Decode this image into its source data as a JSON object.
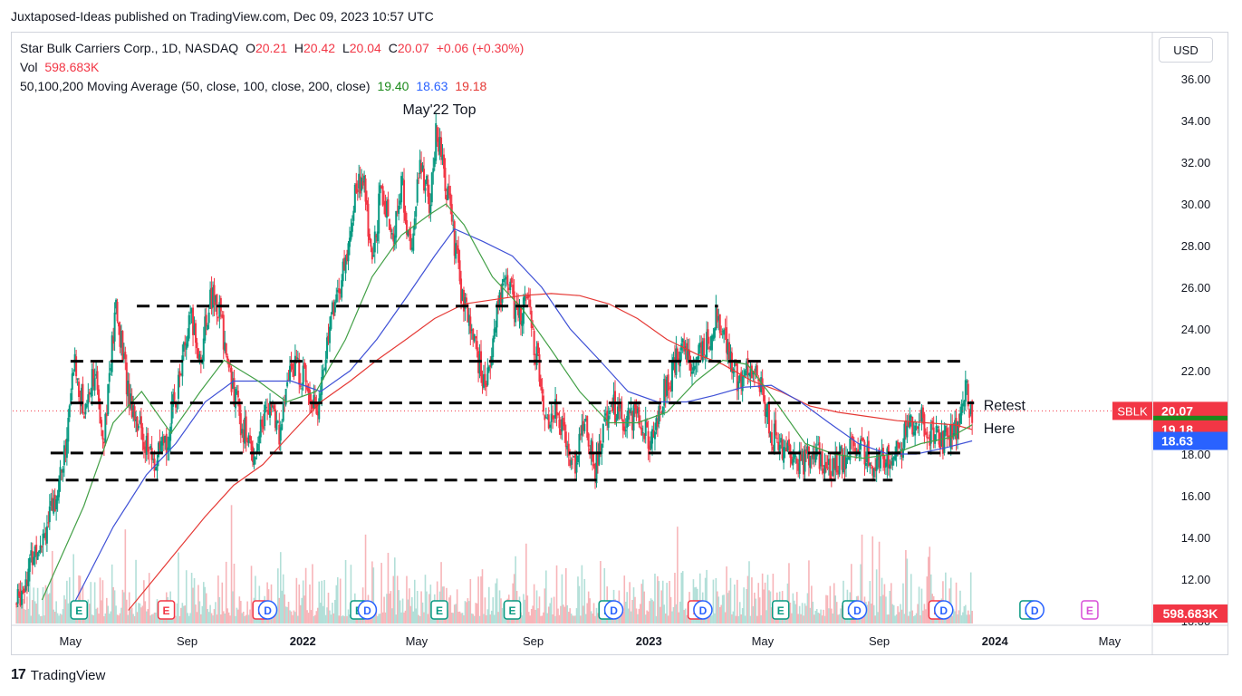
{
  "publisher": "Juxtaposed-Ideas published on TradingView.com, Dec 09, 2023 10:57 UTC",
  "header": {
    "symbol": "Star Bulk Carriers Corp., 1D, NASDAQ",
    "o_label": "O",
    "o_val": "20.21",
    "h_label": "H",
    "h_val": "20.42",
    "l_label": "L",
    "l_val": "20.04",
    "c_label": "C",
    "c_val": "20.07",
    "change": "+0.06 (+0.30%)",
    "vol_label": "Vol",
    "vol_val": "598.683K",
    "ma_label": "50,100,200 Moving Average (50, close, 100, close, 200, close)",
    "ma50": "19.40",
    "ma100": "18.63",
    "ma200": "19.18"
  },
  "currency": "USD",
  "footer_brand": "TradingView",
  "colors": {
    "up": "#089981",
    "down": "#f23645",
    "ma50": "#43a047",
    "ma100": "#3f51d6",
    "ma200": "#e53935",
    "price_tag": "#f23645",
    "accent": "#2962ff"
  },
  "chart_data": {
    "type": "candlestick",
    "title": "Star Bulk Carriers Corp., 1D, NASDAQ",
    "y_ticks": [
      "36.00",
      "34.00",
      "32.00",
      "30.00",
      "28.00",
      "26.00",
      "24.00",
      "22.00",
      "20.00",
      "18.00",
      "16.00",
      "14.00",
      "12.00",
      "10.00"
    ],
    "ylim": [
      10,
      37
    ],
    "x_ticks": [
      "May",
      "Sep",
      "2022",
      "May",
      "Sep",
      "2023",
      "May",
      "Sep",
      "2024",
      "May"
    ],
    "x_bold": [
      "2022",
      "2023",
      "2024"
    ],
    "x_range": [
      "2021-03",
      "2024-06"
    ],
    "price_path": [
      [
        "2021-03-05",
        10.8
      ],
      [
        "2021-03-25",
        13.5
      ],
      [
        "2021-04-10",
        15.0
      ],
      [
        "2021-04-25",
        18.0
      ],
      [
        "2021-05-05",
        22.5
      ],
      [
        "2021-05-15",
        20.0
      ],
      [
        "2021-05-25",
        22.0
      ],
      [
        "2021-06-05",
        19.0
      ],
      [
        "2021-06-18",
        25.0
      ],
      [
        "2021-07-01",
        21.0
      ],
      [
        "2021-07-15",
        19.0
      ],
      [
        "2021-07-28",
        17.5
      ],
      [
        "2021-08-10",
        18.5
      ],
      [
        "2021-08-25",
        22.0
      ],
      [
        "2021-09-05",
        24.5
      ],
      [
        "2021-09-15",
        22.5
      ],
      [
        "2021-09-25",
        25.5
      ],
      [
        "2021-10-05",
        25.0
      ],
      [
        "2021-10-15",
        22.0
      ],
      [
        "2021-10-28",
        19.5
      ],
      [
        "2021-11-10",
        18.0
      ],
      [
        "2021-11-25",
        20.5
      ],
      [
        "2021-12-08",
        19.0
      ],
      [
        "2021-12-20",
        22.5
      ],
      [
        "2022-01-05",
        21.5
      ],
      [
        "2022-01-18",
        20.0
      ],
      [
        "2022-01-28",
        24.0
      ],
      [
        "2022-02-05",
        25.5
      ],
      [
        "2022-02-15",
        27.0
      ],
      [
        "2022-02-25",
        30.5
      ],
      [
        "2022-03-05",
        31.5
      ],
      [
        "2022-03-15",
        27.0
      ],
      [
        "2022-03-25",
        31.0
      ],
      [
        "2022-04-05",
        28.0
      ],
      [
        "2022-04-15",
        31.0
      ],
      [
        "2022-04-25",
        27.5
      ],
      [
        "2022-05-05",
        32.0
      ],
      [
        "2022-05-15",
        30.0
      ],
      [
        "2022-05-22",
        33.5
      ],
      [
        "2022-06-01",
        31.0
      ],
      [
        "2022-06-10",
        28.0
      ],
      [
        "2022-06-20",
        25.0
      ],
      [
        "2022-07-01",
        23.5
      ],
      [
        "2022-07-12",
        21.0
      ],
      [
        "2022-07-25",
        25.0
      ],
      [
        "2022-08-05",
        26.5
      ],
      [
        "2022-08-15",
        24.5
      ],
      [
        "2022-08-25",
        25.5
      ],
      [
        "2022-09-05",
        22.5
      ],
      [
        "2022-09-15",
        19.5
      ],
      [
        "2022-09-25",
        20.5
      ],
      [
        "2022-10-05",
        18.5
      ],
      [
        "2022-10-15",
        17.5
      ],
      [
        "2022-10-25",
        20.0
      ],
      [
        "2022-11-05",
        17.2
      ],
      [
        "2022-11-20",
        20.5
      ],
      [
        "2022-12-05",
        19.5
      ],
      [
        "2022-12-20",
        20.0
      ],
      [
        "2023-01-05",
        18.5
      ],
      [
        "2023-01-20",
        21.5
      ],
      [
        "2023-02-05",
        23.0
      ],
      [
        "2023-02-20",
        22.5
      ],
      [
        "2023-03-05",
        23.5
      ],
      [
        "2023-03-15",
        24.8
      ],
      [
        "2023-03-25",
        23.0
      ],
      [
        "2023-04-05",
        21.5
      ],
      [
        "2023-04-20",
        22.0
      ],
      [
        "2023-05-01",
        21.0
      ],
      [
        "2023-05-10",
        19.0
      ],
      [
        "2023-05-25",
        18.0
      ],
      [
        "2023-06-10",
        17.5
      ],
      [
        "2023-06-25",
        18.0
      ],
      [
        "2023-07-10",
        17.2
      ],
      [
        "2023-07-25",
        17.8
      ],
      [
        "2023-08-10",
        18.5
      ],
      [
        "2023-08-25",
        17.5
      ],
      [
        "2023-09-10",
        17.8
      ],
      [
        "2023-09-25",
        18.5
      ],
      [
        "2023-10-05",
        19.5
      ],
      [
        "2023-10-15",
        19.8
      ],
      [
        "2023-10-25",
        19.0
      ],
      [
        "2023-11-05",
        18.5
      ],
      [
        "2023-11-15",
        18.8
      ],
      [
        "2023-11-25",
        19.5
      ],
      [
        "2023-12-01",
        21.5
      ],
      [
        "2023-12-04",
        20.5
      ],
      [
        "2023-12-08",
        20.07
      ]
    ],
    "ma50_path": [
      [
        "2021-04-01",
        11.0
      ],
      [
        "2021-05-15",
        15.5
      ],
      [
        "2021-06-15",
        19.5
      ],
      [
        "2021-07-15",
        21.0
      ],
      [
        "2021-08-15",
        19.0
      ],
      [
        "2021-09-15",
        21.0
      ],
      [
        "2021-10-10",
        22.5
      ],
      [
        "2021-11-15",
        21.5
      ],
      [
        "2021-12-15",
        20.5
      ],
      [
        "2022-01-15",
        21.0
      ],
      [
        "2022-02-15",
        23.5
      ],
      [
        "2022-03-15",
        26.5
      ],
      [
        "2022-04-15",
        28.5
      ],
      [
        "2022-05-15",
        29.5
      ],
      [
        "2022-06-01",
        30.0
      ],
      [
        "2022-06-20",
        29.0
      ],
      [
        "2022-07-20",
        26.5
      ],
      [
        "2022-08-20",
        25.0
      ],
      [
        "2022-09-20",
        23.0
      ],
      [
        "2022-10-20",
        21.0
      ],
      [
        "2022-11-20",
        19.5
      ],
      [
        "2022-12-20",
        19.5
      ],
      [
        "2023-01-20",
        20.0
      ],
      [
        "2023-02-20",
        21.5
      ],
      [
        "2023-03-20",
        22.5
      ],
      [
        "2023-04-15",
        22.3
      ],
      [
        "2023-05-15",
        20.5
      ],
      [
        "2023-06-15",
        18.5
      ],
      [
        "2023-07-15",
        18.0
      ],
      [
        "2023-08-15",
        17.8
      ],
      [
        "2023-09-15",
        18.0
      ],
      [
        "2023-10-15",
        18.5
      ],
      [
        "2023-11-15",
        18.8
      ],
      [
        "2023-12-08",
        19.4
      ]
    ],
    "ma100_path": [
      [
        "2021-05-01",
        10.5
      ],
      [
        "2021-06-15",
        14.5
      ],
      [
        "2021-07-20",
        17.0
      ],
      [
        "2021-08-20",
        18.5
      ],
      [
        "2021-09-20",
        20.5
      ],
      [
        "2021-10-20",
        21.5
      ],
      [
        "2021-11-20",
        21.5
      ],
      [
        "2021-12-20",
        21.5
      ],
      [
        "2022-01-20",
        21.0
      ],
      [
        "2022-02-20",
        22.0
      ],
      [
        "2022-03-20",
        23.5
      ],
      [
        "2022-04-20",
        25.5
      ],
      [
        "2022-05-20",
        27.5
      ],
      [
        "2022-06-10",
        28.8
      ],
      [
        "2022-07-10",
        28.2
      ],
      [
        "2022-08-10",
        27.5
      ],
      [
        "2022-09-10",
        26.0
      ],
      [
        "2022-10-10",
        24.0
      ],
      [
        "2022-11-10",
        22.5
      ],
      [
        "2022-12-10",
        21.0
      ],
      [
        "2023-01-10",
        20.5
      ],
      [
        "2023-02-10",
        20.5
      ],
      [
        "2023-03-10",
        20.8
      ],
      [
        "2023-04-10",
        21.2
      ],
      [
        "2023-05-10",
        21.3
      ],
      [
        "2023-06-10",
        20.5
      ],
      [
        "2023-07-10",
        19.5
      ],
      [
        "2023-08-10",
        18.5
      ],
      [
        "2023-09-10",
        18.0
      ],
      [
        "2023-10-10",
        18.0
      ],
      [
        "2023-11-10",
        18.3
      ],
      [
        "2023-12-08",
        18.63
      ]
    ],
    "ma200_path": [
      [
        "2021-07-01",
        10.5
      ],
      [
        "2021-08-15",
        13.0
      ],
      [
        "2021-09-20",
        15.0
      ],
      [
        "2021-10-20",
        16.5
      ],
      [
        "2021-11-20",
        17.5
      ],
      [
        "2021-12-20",
        19.0
      ],
      [
        "2022-01-20",
        20.5
      ],
      [
        "2022-02-20",
        21.5
      ],
      [
        "2022-03-20",
        22.5
      ],
      [
        "2022-04-20",
        23.5
      ],
      [
        "2022-05-20",
        24.5
      ],
      [
        "2022-06-20",
        25.2
      ],
      [
        "2022-07-20",
        25.4
      ],
      [
        "2022-08-20",
        25.6
      ],
      [
        "2022-09-20",
        25.7
      ],
      [
        "2022-10-20",
        25.6
      ],
      [
        "2022-11-20",
        25.2
      ],
      [
        "2022-12-20",
        24.5
      ],
      [
        "2023-01-20",
        23.5
      ],
      [
        "2023-02-20",
        22.8
      ],
      [
        "2023-03-20",
        22.3
      ],
      [
        "2023-04-20",
        21.5
      ],
      [
        "2023-05-20",
        21.0
      ],
      [
        "2023-06-20",
        20.3
      ],
      [
        "2023-07-20",
        20.0
      ],
      [
        "2023-08-20",
        19.8
      ],
      [
        "2023-09-20",
        19.6
      ],
      [
        "2023-10-20",
        19.5
      ],
      [
        "2023-11-20",
        19.4
      ],
      [
        "2023-12-08",
        19.18
      ]
    ],
    "support_lines": [
      {
        "y": 25.1,
        "from": "2021-07-10",
        "to": "2023-03-15"
      },
      {
        "y": 22.45,
        "from": "2021-05-01",
        "to": "2023-11-30"
      },
      {
        "y": 20.45,
        "from": "2021-05-01",
        "to": "2023-12-10"
      },
      {
        "y": 18.05,
        "from": "2021-04-10",
        "to": "2023-11-30"
      },
      {
        "y": 16.75,
        "from": "2021-04-05",
        "to": "2023-09-15"
      }
    ],
    "annotations": [
      {
        "text": "May'22 Top",
        "x": "2022-05-25",
        "y": 34.3
      },
      {
        "text": "Retest",
        "x": "2023-12-20",
        "y": 20.1
      },
      {
        "text": "Here",
        "x": "2023-12-20",
        "y": 19.0
      }
    ],
    "price_tags": [
      {
        "text": "20.07",
        "y": 20.07,
        "bg": "#f23645"
      },
      {
        "text": "19.40",
        "y": 19.4,
        "bg": "#1b8a1b"
      },
      {
        "text": "19.18",
        "y": 19.18,
        "bg": "#f23645"
      },
      {
        "text": "18.63",
        "y": 18.63,
        "bg": "#2962ff"
      }
    ],
    "symbol_tag": "SBLK",
    "volume_tag": "598.683K",
    "events": [
      {
        "type": "E",
        "x": "2021-05-10",
        "color": "#089981"
      },
      {
        "type": "E",
        "x": "2021-08-10",
        "color": "#f23645"
      },
      {
        "type": "E",
        "x": "2021-11-18",
        "color": "#f23645"
      },
      {
        "type": "D",
        "x": "2021-11-25",
        "color": "#2962ff"
      },
      {
        "type": "E",
        "x": "2022-03-01",
        "color": "#089981"
      },
      {
        "type": "D",
        "x": "2022-03-10",
        "color": "#2962ff"
      },
      {
        "type": "E",
        "x": "2022-05-25",
        "color": "#089981"
      },
      {
        "type": "E",
        "x": "2022-08-10",
        "color": "#089981"
      },
      {
        "type": "E",
        "x": "2022-11-18",
        "color": "#089981"
      },
      {
        "type": "D",
        "x": "2022-11-25",
        "color": "#2962ff"
      },
      {
        "type": "E",
        "x": "2023-02-20",
        "color": "#f23645"
      },
      {
        "type": "D",
        "x": "2023-02-27",
        "color": "#2962ff"
      },
      {
        "type": "E",
        "x": "2023-05-20",
        "color": "#089981"
      },
      {
        "type": "E",
        "x": "2023-08-02",
        "color": "#089981"
      },
      {
        "type": "D",
        "x": "2023-08-09",
        "color": "#2962ff"
      },
      {
        "type": "E",
        "x": "2023-11-01",
        "color": "#f23645"
      },
      {
        "type": "D",
        "x": "2023-11-08",
        "color": "#2962ff"
      },
      {
        "type": "E",
        "x": "2024-02-05",
        "color": "#089981"
      },
      {
        "type": "D",
        "x": "2024-02-12",
        "color": "#2962ff"
      },
      {
        "type": "E",
        "x": "2024-04-10",
        "color": "#d84fd8"
      }
    ]
  }
}
